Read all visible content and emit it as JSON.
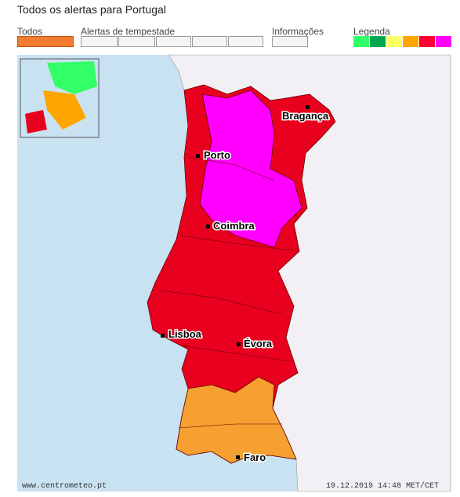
{
  "header": {
    "title": "Todos os alertas para Portugal"
  },
  "toolbar": {
    "all": "Todos",
    "storm": "Alertas de tempestade",
    "info": "Informações",
    "legend": {
      "label": "Legenda",
      "colors": [
        "#33ff66",
        "#00a651",
        "#ffff66",
        "#ffa500",
        "#ff0033",
        "#ff00ff"
      ]
    }
  },
  "map": {
    "cities": [
      {
        "label": "Bragança"
      },
      {
        "label": "Porto"
      },
      {
        "label": "Coimbra"
      },
      {
        "label": "Lisboa"
      },
      {
        "label": "Évora"
      },
      {
        "label": "Faro"
      }
    ],
    "source": "www.centrometeo.pt",
    "timestamp": "19.12.2019 14:48 MET/CET"
  }
}
